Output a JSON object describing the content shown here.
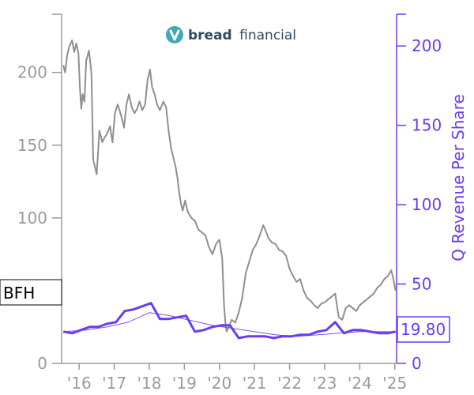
{
  "brand": {
    "logo_icon": "bread-financial-logo-icon",
    "name_bold": "bread",
    "name_light": "financial"
  },
  "colors": {
    "price_line": "#8f8f8f",
    "revenue_line": "#6a3cf0",
    "revenue_trend": "#6a3cf0",
    "left_axis": "#9b9b9b",
    "right_axis": "#6a3cf0",
    "logo_teal": "#3fa9b5",
    "logo_text": "#2f4a63"
  },
  "chart_data": {
    "type": "line",
    "ticker": "BFH",
    "last_value_label": "19.80",
    "x_ticks": [
      "'16",
      "'17",
      "'18",
      "'19",
      "'20",
      "'21",
      "'22",
      "'23",
      "'24",
      "'25"
    ],
    "x_tick_years": [
      2016,
      2017,
      2018,
      2019,
      2020,
      2021,
      2022,
      2023,
      2024,
      2025
    ],
    "xlim": [
      2015.5,
      2025.05
    ],
    "left_axis": {
      "ylim": [
        0,
        240
      ],
      "ticks": [
        0,
        50,
        100,
        150,
        200
      ]
    },
    "right_axis": {
      "label": "Q Revenue Per Share",
      "ylim": [
        0,
        220
      ],
      "ticks": [
        0,
        50,
        100,
        150,
        200
      ]
    },
    "series": [
      {
        "name": "price",
        "axis": "left",
        "x": [
          2015.55,
          2015.6,
          2015.66,
          2015.72,
          2015.8,
          2015.86,
          2015.92,
          2015.98,
          2016.02,
          2016.06,
          2016.1,
          2016.15,
          2016.2,
          2016.28,
          2016.35,
          2016.4,
          2016.5,
          2016.58,
          2016.66,
          2016.72,
          2016.8,
          2016.88,
          2016.95,
          2017.02,
          2017.1,
          2017.2,
          2017.28,
          2017.35,
          2017.42,
          2017.5,
          2017.58,
          2017.65,
          2017.72,
          2017.8,
          2017.88,
          2017.95,
          2018.02,
          2018.08,
          2018.15,
          2018.22,
          2018.3,
          2018.4,
          2018.48,
          2018.55,
          2018.62,
          2018.7,
          2018.75,
          2018.8,
          2018.85,
          2018.9,
          2018.95,
          2019.02,
          2019.1,
          2019.2,
          2019.3,
          2019.4,
          2019.5,
          2019.6,
          2019.7,
          2019.8,
          2019.9,
          2020.0,
          2020.08,
          2020.13,
          2020.17,
          2020.2,
          2020.25,
          2020.35,
          2020.45,
          2020.55,
          2020.65,
          2020.75,
          2020.85,
          2020.95,
          2021.05,
          2021.15,
          2021.25,
          2021.32,
          2021.4,
          2021.5,
          2021.6,
          2021.7,
          2021.8,
          2021.9,
          2022.0,
          2022.1,
          2022.2,
          2022.3,
          2022.4,
          2022.5,
          2022.6,
          2022.7,
          2022.8,
          2022.9,
          2023.0,
          2023.1,
          2023.2,
          2023.3,
          2023.4,
          2023.5,
          2023.6,
          2023.7,
          2023.8,
          2023.9,
          2024.0,
          2024.1,
          2024.2,
          2024.3,
          2024.4,
          2024.5,
          2024.6,
          2024.7,
          2024.8,
          2024.9,
          2024.96,
          2025.02
        ],
        "values": [
          205,
          200,
          212,
          218,
          222,
          214,
          220,
          213,
          190,
          175,
          185,
          180,
          208,
          215,
          200,
          140,
          130,
          160,
          152,
          155,
          158,
          163,
          152,
          172,
          178,
          170,
          162,
          178,
          185,
          176,
          172,
          175,
          180,
          174,
          178,
          195,
          202,
          190,
          185,
          178,
          174,
          180,
          176,
          160,
          148,
          140,
          135,
          128,
          118,
          110,
          105,
          112,
          104,
          100,
          98,
          92,
          90,
          88,
          80,
          75,
          82,
          85,
          72,
          40,
          28,
          22,
          24,
          30,
          28,
          35,
          45,
          62,
          70,
          78,
          82,
          88,
          95,
          91,
          86,
          83,
          82,
          78,
          77,
          74,
          65,
          60,
          56,
          58,
          50,
          45,
          43,
          40,
          38,
          41,
          42,
          44,
          46,
          48,
          32,
          30,
          38,
          40,
          38,
          36,
          40,
          42,
          44,
          46,
          48,
          52,
          54,
          58,
          60,
          64,
          58,
          50
        ]
      },
      {
        "name": "Q Revenue Per Share",
        "axis": "right",
        "x": [
          2015.55,
          2015.8,
          2016.05,
          2016.3,
          2016.55,
          2016.8,
          2017.05,
          2017.3,
          2017.55,
          2017.8,
          2018.05,
          2018.3,
          2018.55,
          2018.8,
          2019.05,
          2019.3,
          2019.55,
          2019.8,
          2020.05,
          2020.3,
          2020.55,
          2020.8,
          2021.05,
          2021.3,
          2021.55,
          2021.8,
          2022.05,
          2022.3,
          2022.55,
          2022.8,
          2023.05,
          2023.3,
          2023.55,
          2023.8,
          2024.05,
          2024.3,
          2024.55,
          2024.8,
          2025.02
        ],
        "values": [
          20,
          19,
          21,
          23,
          23,
          25,
          26,
          33,
          34,
          36,
          38,
          28,
          28,
          29,
          30,
          20,
          21,
          23,
          24,
          24,
          16,
          17,
          17,
          17,
          16,
          17,
          17,
          18,
          18,
          20,
          21,
          26,
          19,
          21,
          21,
          20,
          19,
          19,
          20
        ]
      },
      {
        "name": "Q Revenue Per Share trend",
        "axis": "right",
        "x": [
          2015.55,
          2016.2,
          2016.8,
          2017.4,
          2018.0,
          2018.6,
          2019.2,
          2019.8,
          2020.4,
          2021.0,
          2021.6,
          2022.2,
          2022.8,
          2023.4,
          2024.0,
          2024.6,
          2025.02
        ],
        "values": [
          20,
          21,
          23,
          26,
          32,
          30,
          27,
          24,
          22,
          20,
          18,
          17,
          18,
          19,
          20,
          20,
          20
        ]
      }
    ]
  }
}
